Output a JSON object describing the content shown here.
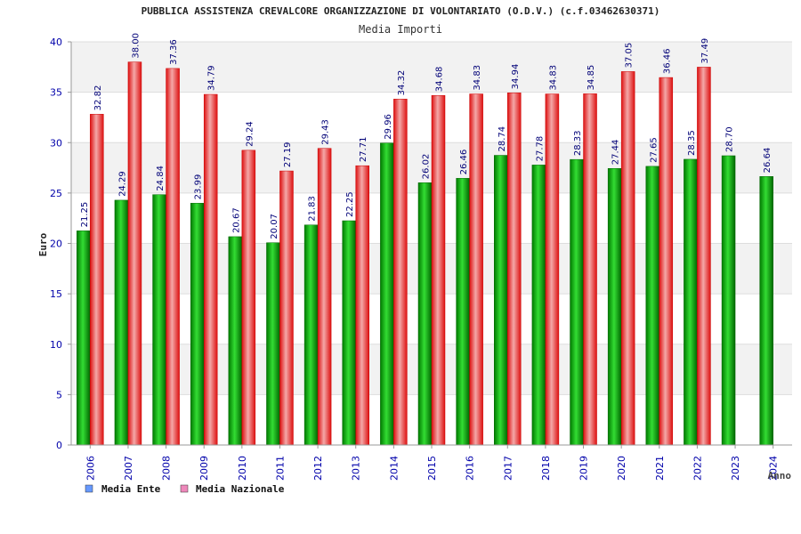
{
  "chart_data": {
    "type": "bar",
    "title": "PUBBLICA ASSISTENZA CREVALCORE ORGANIZZAZIONE DI VOLONTARIATO (O.D.V.) (c.f.03462630371)",
    "subtitle": "Media Importi",
    "xlabel": "Anno",
    "ylabel": "Euro",
    "ylim": [
      0,
      40
    ],
    "yticks": [
      "0",
      "5",
      "10",
      "15",
      "20",
      "25",
      "30",
      "35",
      "40"
    ],
    "categories": [
      "2006",
      "2007",
      "2008",
      "2009",
      "2010",
      "2011",
      "2012",
      "2013",
      "2014",
      "2015",
      "2016",
      "2017",
      "2018",
      "2019",
      "2020",
      "2021",
      "2022",
      "2023",
      "2024"
    ],
    "series": [
      {
        "name": "Media Ente",
        "color": "#00aa00",
        "legend_color": "#6699ff",
        "values": [
          21.25,
          24.29,
          24.84,
          23.99,
          20.67,
          20.07,
          21.83,
          22.25,
          29.96,
          26.02,
          26.46,
          28.74,
          27.78,
          28.33,
          27.44,
          27.65,
          28.35,
          28.7,
          26.64
        ],
        "labels": [
          "21.25",
          "24.29",
          "24.84",
          "23.99",
          "20.67",
          "20.07",
          "21.83",
          "22.25",
          "29.96",
          "26.02",
          "26.46",
          "28.74",
          "27.78",
          "28.33",
          "27.44",
          "27.65",
          "28.35",
          "28.70",
          "26.64"
        ]
      },
      {
        "name": "Media Nazionale",
        "color": "#ee2222",
        "legend_color": "#ee88bb",
        "values": [
          32.82,
          38.0,
          37.36,
          34.79,
          29.24,
          27.19,
          29.43,
          27.71,
          34.32,
          34.68,
          34.83,
          34.94,
          34.83,
          34.85,
          37.05,
          36.46,
          37.49,
          null,
          null
        ],
        "labels": [
          "32.82",
          "38.00",
          "37.36",
          "34.79",
          "29.24",
          "27.19",
          "29.43",
          "27.71",
          "34.32",
          "34.68",
          "34.83",
          "34.94",
          "34.83",
          "34.85",
          "37.05",
          "36.46",
          "37.49",
          null,
          null
        ]
      }
    ],
    "grid": true,
    "legend": "bottom-left"
  }
}
